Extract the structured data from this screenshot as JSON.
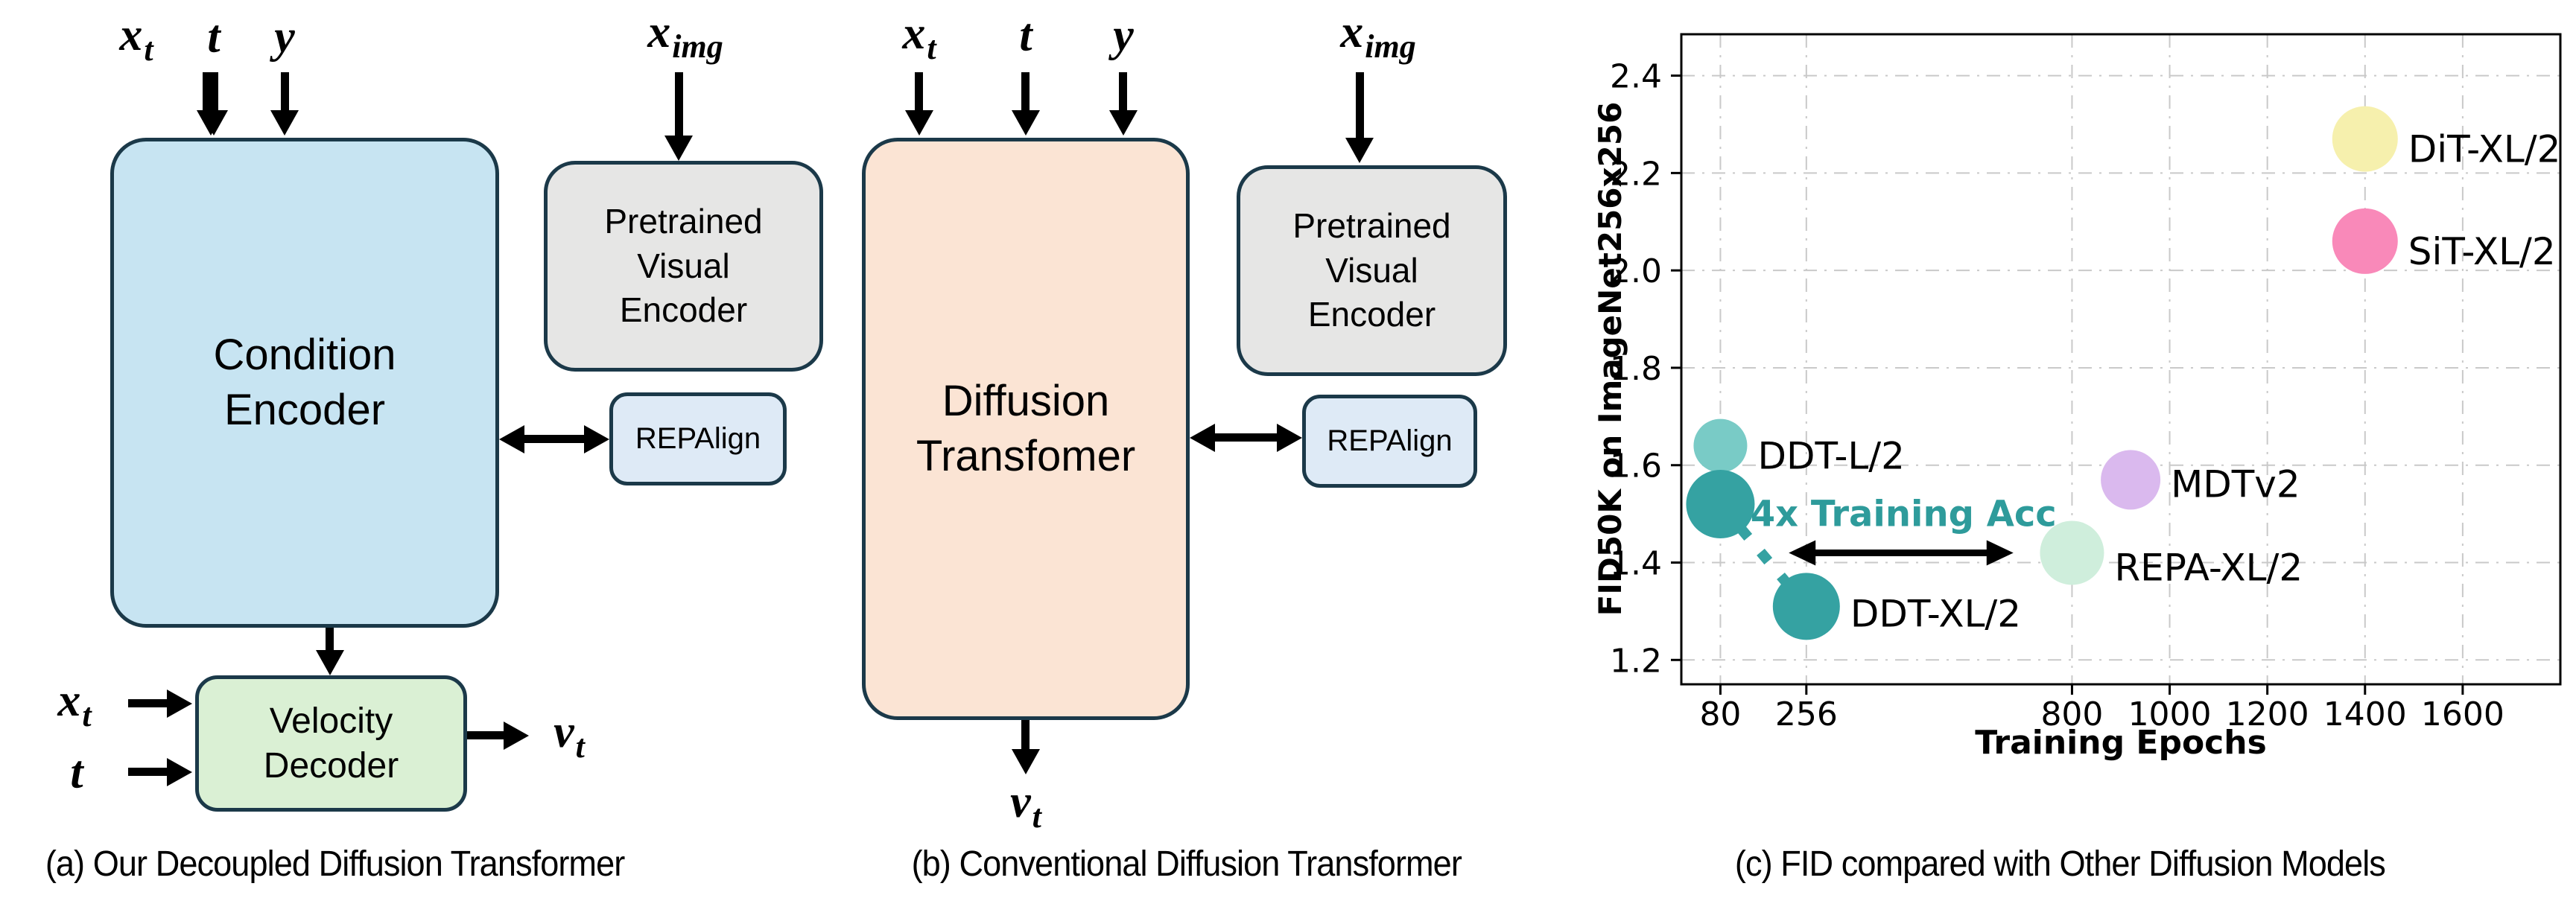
{
  "panel_a": {
    "caption": "(a) Our Decoupled Diffusion Transformer",
    "inputs_top": [
      {
        "base": "x",
        "sub": "t"
      },
      {
        "base": "t",
        "sub": ""
      },
      {
        "base": "y",
        "sub": ""
      }
    ],
    "x_img": {
      "base": "x",
      "sub": "img"
    },
    "condition_encoder_label": "Condition\nEncoder",
    "pretrained_encoder_label": "Pretrained\nVisual\nEncoder",
    "repalign_label": "REPAlign",
    "velocity_decoder_label": "Velocity\nDecoder",
    "side_inputs": [
      {
        "base": "x",
        "sub": "t"
      },
      {
        "base": "t",
        "sub": ""
      }
    ],
    "output": {
      "base": "v",
      "sub": "t"
    }
  },
  "panel_b": {
    "caption": "(b) Conventional Diffusion Transformer",
    "inputs_top": [
      {
        "base": "x",
        "sub": "t"
      },
      {
        "base": "t",
        "sub": ""
      },
      {
        "base": "y",
        "sub": ""
      }
    ],
    "x_img": {
      "base": "x",
      "sub": "img"
    },
    "diffusion_transformer_label": "Diffusion\nTransfomer",
    "pretrained_encoder_label": "Pretrained\nVisual\nEncoder",
    "repalign_label": "REPAlign",
    "output": {
      "base": "v",
      "sub": "t"
    }
  },
  "panel_c": {
    "caption": "(c) FID compared with Other Diffusion Models"
  },
  "chart_data": {
    "type": "scatter",
    "title": "",
    "xlabel": "Training Epochs",
    "ylabel": "FID50K on ImageNet256x256",
    "xlim": [
      0,
      1800
    ],
    "ylim": [
      1.15,
      2.485
    ],
    "x_ticks": [
      80,
      256,
      800,
      1000,
      1200,
      1400,
      1600
    ],
    "y_ticks": [
      1.2,
      1.4,
      1.6,
      1.8,
      2.0,
      2.2,
      2.4
    ],
    "grid": "dash-dot light gray, on",
    "legend": "none",
    "frame_color": "#000000",
    "grid_color": "#C9C9C9",
    "points": [
      {
        "label": "DDT-L/2",
        "x": 80,
        "y": 1.64,
        "r": 36,
        "color": "#79CBC6",
        "label_dy": 14
      },
      {
        "label": "",
        "x": 80,
        "y": 1.52,
        "r": 46,
        "color": "#35A2A2",
        "label_dy": 0
      },
      {
        "label": "DDT-XL/2",
        "x": 256,
        "y": 1.31,
        "r": 45,
        "color": "#35A2A2",
        "label_dy": 10
      },
      {
        "label": "REPA-XL/2",
        "x": 800,
        "y": 1.42,
        "r": 43,
        "color": "#CFEEDC",
        "label_dy": 20
      },
      {
        "label": "MDTv2",
        "x": 920,
        "y": 1.57,
        "r": 40,
        "color": "#DAB9EE",
        "label_dy": 6
      },
      {
        "label": "DiT-XL/2",
        "x": 1400,
        "y": 2.27,
        "r": 44,
        "color": "#F6F0AD",
        "label_dy": 14
      },
      {
        "label": "SiT-XL/2",
        "x": 1400,
        "y": 2.06,
        "r": 44,
        "color": "#F989B9",
        "label_dy": 14
      }
    ],
    "trajectory": {
      "from_x": 80,
      "from_y": 1.52,
      "to_x": 256,
      "to_y": 1.31,
      "color": "#35A2A2",
      "style": "dashed"
    },
    "annotation": {
      "text": "4x Training Acc",
      "color": "#2E9B9B",
      "arrow_x1": 220,
      "arrow_x2": 680,
      "arrow_y": 1.42,
      "text_x": 455,
      "text_y": 1.475
    }
  },
  "colors": {
    "condition_encoder_fill": "#C7E4F2",
    "velocity_decoder_fill": "#DAF0D4",
    "pretrained_encoder_fill": "#E6E6E5",
    "repalign_fill": "#DEEAF6",
    "diffusion_transformer_fill": "#FBE4D4",
    "box_border": "#1B3949",
    "arrow": "#000000"
  }
}
